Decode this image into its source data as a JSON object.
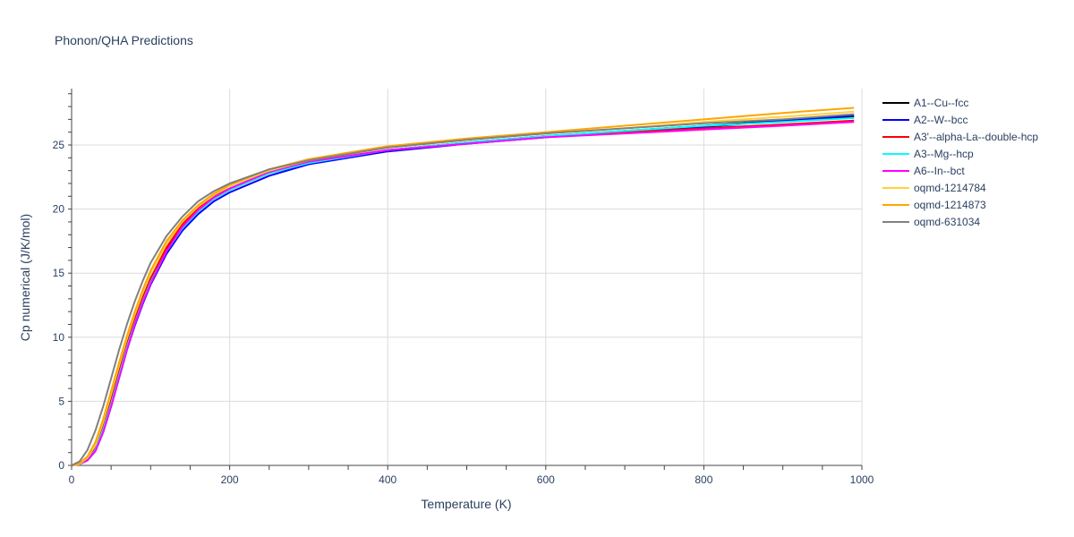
{
  "chart_data": {
    "type": "line",
    "title": "Phonon/QHA Predictions",
    "xlabel": "Temperature (K)",
    "ylabel": "Cp numerical (J/K/mol)",
    "xlim": [
      0,
      1000
    ],
    "ylim": [
      0,
      29.4
    ],
    "xticks": [
      0,
      200,
      400,
      600,
      800,
      1000
    ],
    "yticks": [
      0,
      5,
      10,
      15,
      20,
      25
    ],
    "grid": true,
    "legend_position": "right",
    "x": [
      0,
      10,
      20,
      30,
      40,
      50,
      60,
      70,
      80,
      90,
      100,
      120,
      140,
      160,
      180,
      200,
      250,
      300,
      400,
      500,
      600,
      700,
      800,
      900,
      990
    ],
    "series": [
      {
        "name": "A1--Cu--fcc",
        "color": "#000000",
        "values": [
          0,
          0.1,
          0.4,
          1.2,
          2.8,
          4.9,
          7.1,
          9.3,
          11.2,
          12.9,
          14.4,
          16.8,
          18.6,
          19.9,
          20.8,
          21.5,
          22.8,
          23.6,
          24.6,
          25.2,
          25.7,
          26.1,
          26.5,
          26.9,
          27.2
        ]
      },
      {
        "name": "A2--W--bcc",
        "color": "#0000ff",
        "values": [
          0,
          0.1,
          0.4,
          1.1,
          2.6,
          4.6,
          6.8,
          9.0,
          10.9,
          12.6,
          14.1,
          16.5,
          18.3,
          19.6,
          20.6,
          21.3,
          22.6,
          23.5,
          24.5,
          25.1,
          25.6,
          26.0,
          26.4,
          26.9,
          27.3
        ]
      },
      {
        "name": "A3'--alpha-La--double-hcp",
        "color": "#ff0000",
        "values": [
          0,
          0.1,
          0.5,
          1.3,
          3.0,
          5.1,
          7.3,
          9.5,
          11.4,
          13.1,
          14.6,
          17.0,
          18.8,
          20.1,
          21.0,
          21.6,
          22.9,
          23.7,
          24.6,
          25.2,
          25.7,
          26.0,
          26.3,
          26.6,
          26.9
        ]
      },
      {
        "name": "A3--Mg--hcp",
        "color": "#00ffff",
        "values": [
          0,
          0.1,
          0.4,
          1.2,
          2.8,
          4.8,
          7.0,
          9.2,
          11.1,
          12.8,
          14.3,
          16.7,
          18.5,
          19.8,
          20.8,
          21.5,
          22.8,
          23.6,
          24.6,
          25.2,
          25.7,
          26.1,
          26.5,
          26.8,
          27.1
        ]
      },
      {
        "name": "A6--In--bct",
        "color": "#ff00ff",
        "values": [
          0,
          0.1,
          0.4,
          1.1,
          2.6,
          4.6,
          6.8,
          9.0,
          11.0,
          12.7,
          14.2,
          16.7,
          18.6,
          19.9,
          20.9,
          21.6,
          22.9,
          23.7,
          24.6,
          25.1,
          25.6,
          25.9,
          26.2,
          26.5,
          26.8
        ]
      },
      {
        "name": "oqmd-1214784",
        "color": "#ffd23c",
        "values": [
          0,
          0.1,
          0.6,
          1.6,
          3.4,
          5.6,
          7.8,
          9.9,
          11.8,
          13.5,
          15.0,
          17.3,
          19.0,
          20.2,
          21.1,
          21.8,
          23.0,
          23.8,
          24.8,
          25.4,
          25.9,
          26.3,
          26.8,
          27.2,
          27.6
        ]
      },
      {
        "name": "oqmd-1214873",
        "color": "#ffa500",
        "values": [
          0,
          0.15,
          0.7,
          1.8,
          3.6,
          5.8,
          8.0,
          10.1,
          12.0,
          13.7,
          15.2,
          17.5,
          19.1,
          20.3,
          21.2,
          21.9,
          23.1,
          23.9,
          24.9,
          25.5,
          26.0,
          26.5,
          27.0,
          27.5,
          27.9
        ]
      },
      {
        "name": "oqmd-631034",
        "color": "#808080",
        "values": [
          0,
          0.3,
          1.2,
          2.7,
          4.6,
          6.8,
          9.0,
          11.0,
          12.8,
          14.4,
          15.8,
          17.9,
          19.4,
          20.6,
          21.4,
          22.0,
          23.1,
          23.8,
          24.8,
          25.4,
          25.9,
          26.3,
          26.7,
          27.0,
          27.4
        ]
      }
    ]
  }
}
